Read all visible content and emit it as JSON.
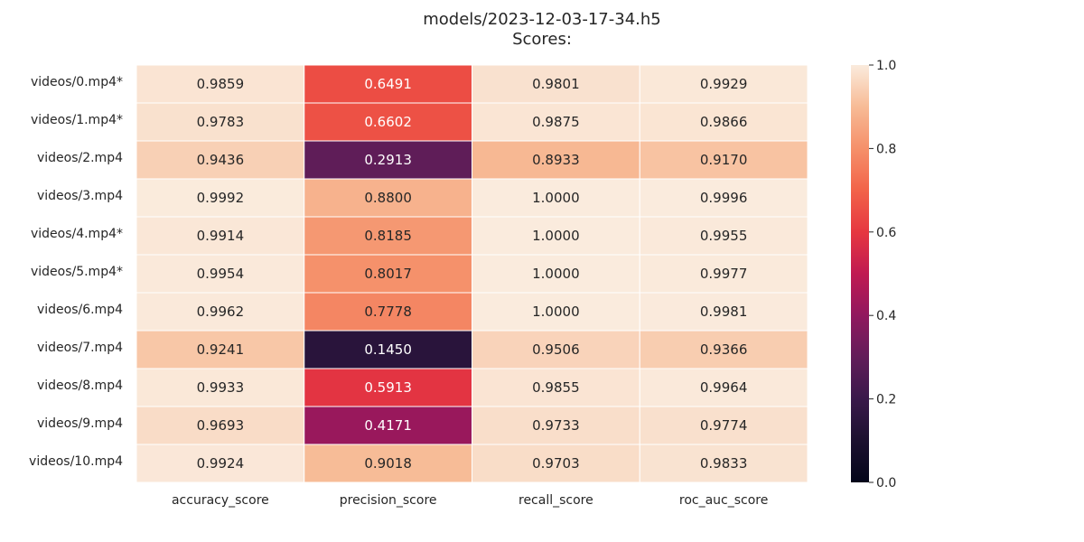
{
  "chart_data": {
    "type": "heatmap",
    "title": "models/2023-12-03-17-34.h5",
    "subtitle": "Scores:",
    "xlabel": "",
    "ylabel": "",
    "columns": [
      "accuracy_score",
      "precision_score",
      "recall_score",
      "roc_auc_score"
    ],
    "rows": [
      "videos/0.mp4*",
      "videos/1.mp4*",
      "videos/2.mp4",
      "videos/3.mp4",
      "videos/4.mp4*",
      "videos/5.mp4*",
      "videos/6.mp4",
      "videos/7.mp4",
      "videos/8.mp4",
      "videos/9.mp4",
      "videos/10.mp4"
    ],
    "values": [
      [
        0.9859,
        0.6491,
        0.9801,
        0.9929
      ],
      [
        0.9783,
        0.6602,
        0.9875,
        0.9866
      ],
      [
        0.9436,
        0.2913,
        0.8933,
        0.917
      ],
      [
        0.9992,
        0.88,
        1.0,
        0.9996
      ],
      [
        0.9914,
        0.8185,
        1.0,
        0.9955
      ],
      [
        0.9954,
        0.8017,
        1.0,
        0.9977
      ],
      [
        0.9962,
        0.7778,
        1.0,
        0.9981
      ],
      [
        0.9241,
        0.145,
        0.9506,
        0.9366
      ],
      [
        0.9933,
        0.5913,
        0.9855,
        0.9964
      ],
      [
        0.9693,
        0.4171,
        0.9733,
        0.9774
      ],
      [
        0.9924,
        0.9018,
        0.9703,
        0.9833
      ]
    ],
    "value_format_decimals": 4,
    "colormap": "rocket",
    "vmin": 0.0,
    "vmax": 1.0,
    "colorbar": {
      "ticks": [
        0.0,
        0.2,
        0.4,
        0.6,
        0.8,
        1.0
      ],
      "tick_labels": [
        "0.0",
        "0.2",
        "0.4",
        "0.6",
        "0.8",
        "1.0"
      ]
    },
    "grid_line_color": "#ffffff",
    "text_color_light": "#ffffff",
    "text_color_dark": "#262626"
  }
}
